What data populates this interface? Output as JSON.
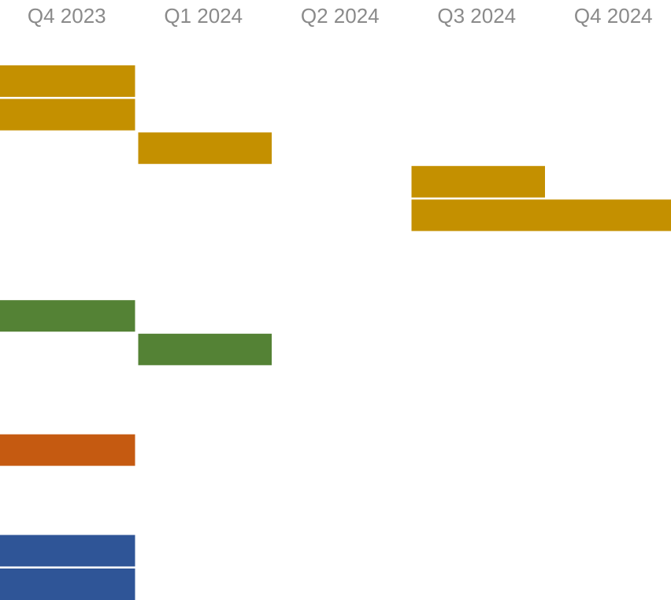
{
  "chart_data": {
    "type": "gantt",
    "categories": [
      "Q4 2023",
      "Q1 2024",
      "Q2 2024",
      "Q3 2024",
      "Q4 2024"
    ],
    "grid": false,
    "legend": "none",
    "tasks": [
      {
        "row": 0,
        "start": 0,
        "end": 1,
        "color": "#C49000"
      },
      {
        "row": 1,
        "start": 0,
        "end": 1,
        "color": "#C49000"
      },
      {
        "row": 2,
        "start": 1,
        "end": 2,
        "color": "#C49000"
      },
      {
        "row": 3,
        "start": 3,
        "end": 4,
        "color": "#C49000"
      },
      {
        "row": 4,
        "start": 3,
        "end": 5,
        "color": "#C49000"
      },
      {
        "row": 7,
        "start": 0,
        "end": 1,
        "color": "#548235"
      },
      {
        "row": 8,
        "start": 1,
        "end": 2,
        "color": "#548235"
      },
      {
        "row": 11,
        "start": 0,
        "end": 1,
        "color": "#C55A11"
      },
      {
        "row": 14,
        "start": 0,
        "end": 1,
        "color": "#2F5597"
      },
      {
        "row": 15,
        "start": 0,
        "end": 1,
        "color": "#2F5597"
      }
    ]
  }
}
